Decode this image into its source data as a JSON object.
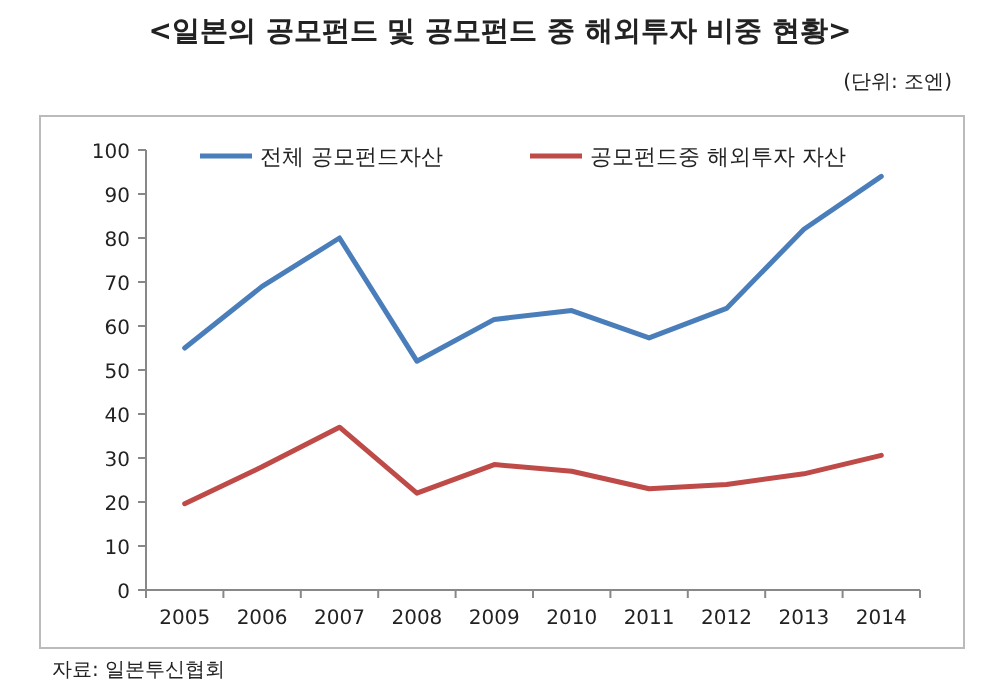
{
  "chart_data": {
    "type": "line",
    "title": "<일본의 공모펀드 및 공모펀드 중 해외투자 비중 현황>",
    "subtitle": "(단위: 조엔)",
    "annotations": [
      "자료: 일본투신협회"
    ],
    "categories": [
      "2005",
      "2006",
      "2007",
      "2008",
      "2009",
      "2010",
      "2011",
      "2012",
      "2013",
      "2014"
    ],
    "series": [
      {
        "name": "전체 공모펀드자산",
        "color": "#4a7ebb",
        "values": [
          55,
          69,
          80,
          52,
          61.5,
          63.5,
          57.3,
          64,
          82,
          94
        ]
      },
      {
        "name": "공모펀드중 해외투자 자산",
        "color": "#be4b48",
        "values": [
          19.6,
          28,
          37,
          22,
          28.5,
          27,
          23,
          24,
          26.4,
          30.6
        ]
      }
    ],
    "ylim": [
      0,
      100
    ],
    "yticks": [
      0,
      10,
      20,
      30,
      40,
      50,
      60,
      70,
      80,
      90,
      100
    ],
    "grid": false,
    "legend": "top",
    "marker": "none",
    "line_style": "solid"
  }
}
